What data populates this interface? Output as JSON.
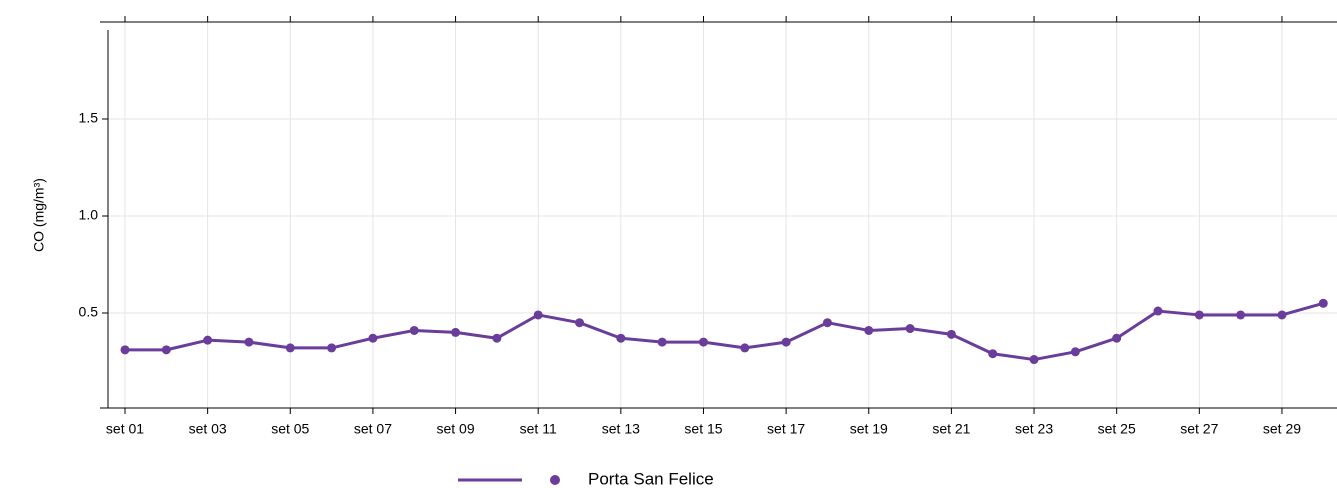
{
  "chart_data": {
    "type": "line",
    "y_label": "CO (mg/m³)",
    "categories": [
      "set 01",
      null,
      "set 03",
      null,
      "set 05",
      null,
      "set 07",
      null,
      "set 09",
      null,
      "set 11",
      null,
      "set 13",
      null,
      "set 15",
      null,
      "set 17",
      null,
      "set 19",
      null,
      "set 21",
      null,
      "set 23",
      null,
      "set 25",
      null,
      "set 27",
      null,
      "set 29",
      null
    ],
    "series": [
      {
        "name": "Porta San Felice",
        "color": "#6a3d9a",
        "values": [
          0.31,
          0.31,
          0.36,
          0.35,
          0.32,
          0.32,
          0.37,
          0.41,
          0.4,
          0.37,
          0.49,
          0.45,
          0.37,
          0.35,
          0.35,
          0.32,
          0.35,
          0.45,
          0.41,
          0.42,
          0.39,
          0.29,
          0.26,
          0.3,
          0.37,
          0.51,
          0.49,
          0.49,
          0.49,
          0.55
        ]
      }
    ],
    "ylim": [
      0,
      2
    ],
    "yticks": [
      0.5,
      {
        "value": 1,
        "label": "1.0"
      },
      1.5
    ],
    "grid": true,
    "legend": "bottom"
  }
}
